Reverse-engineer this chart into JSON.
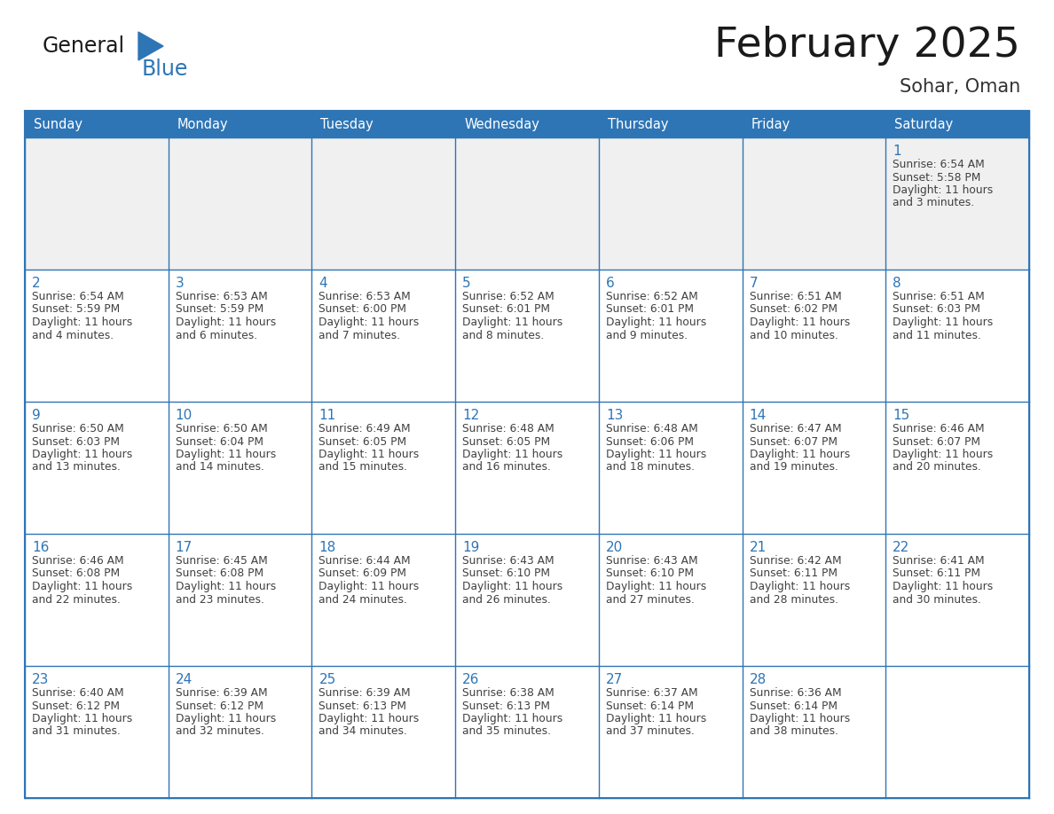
{
  "title": "February 2025",
  "subtitle": "Sohar, Oman",
  "days_of_week": [
    "Sunday",
    "Monday",
    "Tuesday",
    "Wednesday",
    "Thursday",
    "Friday",
    "Saturday"
  ],
  "header_color": "#2E75B6",
  "header_text_color": "#FFFFFF",
  "cell_bg_color": "#FFFFFF",
  "cell_alt_bg_color": "#F0F0F0",
  "cell_line_color": "#2E75B6",
  "day_number_color": "#2E75B6",
  "info_text_color": "#404040",
  "title_color": "#1a1a1a",
  "subtitle_color": "#333333",
  "logo_general_color": "#1a1a1a",
  "logo_blue_color": "#2E75B6",
  "background_color": "#FFFFFF",
  "calendar": [
    [
      null,
      null,
      null,
      null,
      null,
      null,
      1
    ],
    [
      2,
      3,
      4,
      5,
      6,
      7,
      8
    ],
    [
      9,
      10,
      11,
      12,
      13,
      14,
      15
    ],
    [
      16,
      17,
      18,
      19,
      20,
      21,
      22
    ],
    [
      23,
      24,
      25,
      26,
      27,
      28,
      null
    ]
  ],
  "row_is_alt": [
    true,
    false,
    false,
    false,
    false
  ],
  "cell_data": {
    "1": {
      "sunrise": "6:54 AM",
      "sunset": "5:58 PM",
      "daylight": "11 hours and 3 minutes."
    },
    "2": {
      "sunrise": "6:54 AM",
      "sunset": "5:59 PM",
      "daylight": "11 hours and 4 minutes."
    },
    "3": {
      "sunrise": "6:53 AM",
      "sunset": "5:59 PM",
      "daylight": "11 hours and 6 minutes."
    },
    "4": {
      "sunrise": "6:53 AM",
      "sunset": "6:00 PM",
      "daylight": "11 hours and 7 minutes."
    },
    "5": {
      "sunrise": "6:52 AM",
      "sunset": "6:01 PM",
      "daylight": "11 hours and 8 minutes."
    },
    "6": {
      "sunrise": "6:52 AM",
      "sunset": "6:01 PM",
      "daylight": "11 hours and 9 minutes."
    },
    "7": {
      "sunrise": "6:51 AM",
      "sunset": "6:02 PM",
      "daylight": "11 hours and 10 minutes."
    },
    "8": {
      "sunrise": "6:51 AM",
      "sunset": "6:03 PM",
      "daylight": "11 hours and 11 minutes."
    },
    "9": {
      "sunrise": "6:50 AM",
      "sunset": "6:03 PM",
      "daylight": "11 hours and 13 minutes."
    },
    "10": {
      "sunrise": "6:50 AM",
      "sunset": "6:04 PM",
      "daylight": "11 hours and 14 minutes."
    },
    "11": {
      "sunrise": "6:49 AM",
      "sunset": "6:05 PM",
      "daylight": "11 hours and 15 minutes."
    },
    "12": {
      "sunrise": "6:48 AM",
      "sunset": "6:05 PM",
      "daylight": "11 hours and 16 minutes."
    },
    "13": {
      "sunrise": "6:48 AM",
      "sunset": "6:06 PM",
      "daylight": "11 hours and 18 minutes."
    },
    "14": {
      "sunrise": "6:47 AM",
      "sunset": "6:07 PM",
      "daylight": "11 hours and 19 minutes."
    },
    "15": {
      "sunrise": "6:46 AM",
      "sunset": "6:07 PM",
      "daylight": "11 hours and 20 minutes."
    },
    "16": {
      "sunrise": "6:46 AM",
      "sunset": "6:08 PM",
      "daylight": "11 hours and 22 minutes."
    },
    "17": {
      "sunrise": "6:45 AM",
      "sunset": "6:08 PM",
      "daylight": "11 hours and 23 minutes."
    },
    "18": {
      "sunrise": "6:44 AM",
      "sunset": "6:09 PM",
      "daylight": "11 hours and 24 minutes."
    },
    "19": {
      "sunrise": "6:43 AM",
      "sunset": "6:10 PM",
      "daylight": "11 hours and 26 minutes."
    },
    "20": {
      "sunrise": "6:43 AM",
      "sunset": "6:10 PM",
      "daylight": "11 hours and 27 minutes."
    },
    "21": {
      "sunrise": "6:42 AM",
      "sunset": "6:11 PM",
      "daylight": "11 hours and 28 minutes."
    },
    "22": {
      "sunrise": "6:41 AM",
      "sunset": "6:11 PM",
      "daylight": "11 hours and 30 minutes."
    },
    "23": {
      "sunrise": "6:40 AM",
      "sunset": "6:12 PM",
      "daylight": "11 hours and 31 minutes."
    },
    "24": {
      "sunrise": "6:39 AM",
      "sunset": "6:12 PM",
      "daylight": "11 hours and 32 minutes."
    },
    "25": {
      "sunrise": "6:39 AM",
      "sunset": "6:13 PM",
      "daylight": "11 hours and 34 minutes."
    },
    "26": {
      "sunrise": "6:38 AM",
      "sunset": "6:13 PM",
      "daylight": "11 hours and 35 minutes."
    },
    "27": {
      "sunrise": "6:37 AM",
      "sunset": "6:14 PM",
      "daylight": "11 hours and 37 minutes."
    },
    "28": {
      "sunrise": "6:36 AM",
      "sunset": "6:14 PM",
      "daylight": "11 hours and 38 minutes."
    }
  }
}
